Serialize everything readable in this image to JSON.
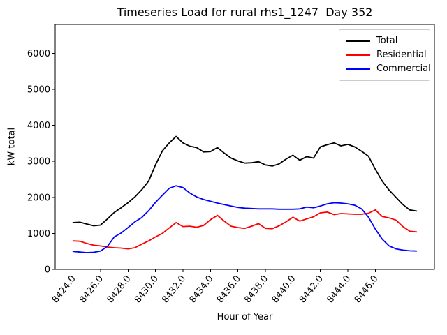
{
  "chart_data": {
    "type": "line",
    "title": "Timeseries Load for rural rhs1_1247  Day 352",
    "xlabel": "Hour of Year",
    "ylabel": "kW total",
    "xlim": [
      8422.7,
      8450.3
    ],
    "ylim": [
      0,
      6800
    ],
    "grid": false,
    "legend_position": "upper right",
    "xticks": [
      8424,
      8426,
      8428,
      8430,
      8432,
      8434,
      8436,
      8438,
      8440,
      8442,
      8444,
      8446
    ],
    "xtick_labels": [
      "8424.0",
      "8426.0",
      "8428.0",
      "8430.0",
      "8432.0",
      "8434.0",
      "8436.0",
      "8438.0",
      "8440.0",
      "8442.0",
      "8444.0",
      "8446.0"
    ],
    "yticks": [
      0,
      1000,
      2000,
      3000,
      4000,
      5000,
      6000
    ],
    "ytick_labels": [
      "0",
      "1000",
      "2000",
      "3000",
      "4000",
      "5000",
      "6000"
    ],
    "x": [
      8424,
      8424.5,
      8425,
      8425.5,
      8426,
      8426.5,
      8427,
      8427.5,
      8428,
      8428.5,
      8429,
      8429.5,
      8430,
      8430.5,
      8431,
      8431.5,
      8432,
      8432.5,
      8433,
      8433.5,
      8434,
      8434.5,
      8435,
      8435.5,
      8436,
      8436.5,
      8437,
      8437.5,
      8438,
      8438.5,
      8439,
      8439.5,
      8440,
      8440.5,
      8441,
      8441.5,
      8442,
      8442.5,
      8443,
      8443.5,
      8444,
      8444.5,
      8445,
      8445.5,
      8446,
      8446.5,
      8447,
      8447.5,
      8448,
      8448.5,
      8449
    ],
    "series": [
      {
        "name": "Total",
        "color": "#000000",
        "values": [
          1300,
          1310,
          1260,
          1210,
          1230,
          1400,
          1580,
          1710,
          1850,
          2010,
          2210,
          2450,
          2900,
          3290,
          3510,
          3690,
          3510,
          3420,
          3380,
          3260,
          3270,
          3380,
          3230,
          3090,
          3010,
          2950,
          2960,
          2990,
          2900,
          2870,
          2930,
          3060,
          3170,
          3030,
          3130,
          3090,
          3400,
          3460,
          3510,
          3430,
          3470,
          3400,
          3280,
          3140,
          2780,
          2450,
          2200,
          2000,
          1800,
          1650,
          1620
        ]
      },
      {
        "name": "Residential",
        "color": "#ff0000",
        "values": [
          790,
          780,
          720,
          670,
          650,
          620,
          600,
          590,
          570,
          600,
          700,
          790,
          900,
          1000,
          1150,
          1300,
          1190,
          1200,
          1170,
          1220,
          1380,
          1500,
          1340,
          1200,
          1160,
          1140,
          1200,
          1270,
          1140,
          1130,
          1210,
          1320,
          1450,
          1340,
          1400,
          1460,
          1570,
          1590,
          1520,
          1550,
          1540,
          1530,
          1530,
          1560,
          1650,
          1470,
          1430,
          1370,
          1190,
          1060,
          1040
        ]
      },
      {
        "name": "Commercial",
        "color": "#0000ff",
        "values": [
          500,
          480,
          465,
          475,
          510,
          640,
          900,
          1010,
          1160,
          1320,
          1440,
          1630,
          1860,
          2060,
          2250,
          2320,
          2270,
          2120,
          2010,
          1940,
          1890,
          1840,
          1800,
          1760,
          1720,
          1700,
          1690,
          1680,
          1680,
          1680,
          1670,
          1670,
          1670,
          1680,
          1730,
          1710,
          1760,
          1820,
          1850,
          1840,
          1820,
          1780,
          1680,
          1450,
          1120,
          840,
          650,
          570,
          535,
          515,
          510
        ]
      }
    ]
  }
}
